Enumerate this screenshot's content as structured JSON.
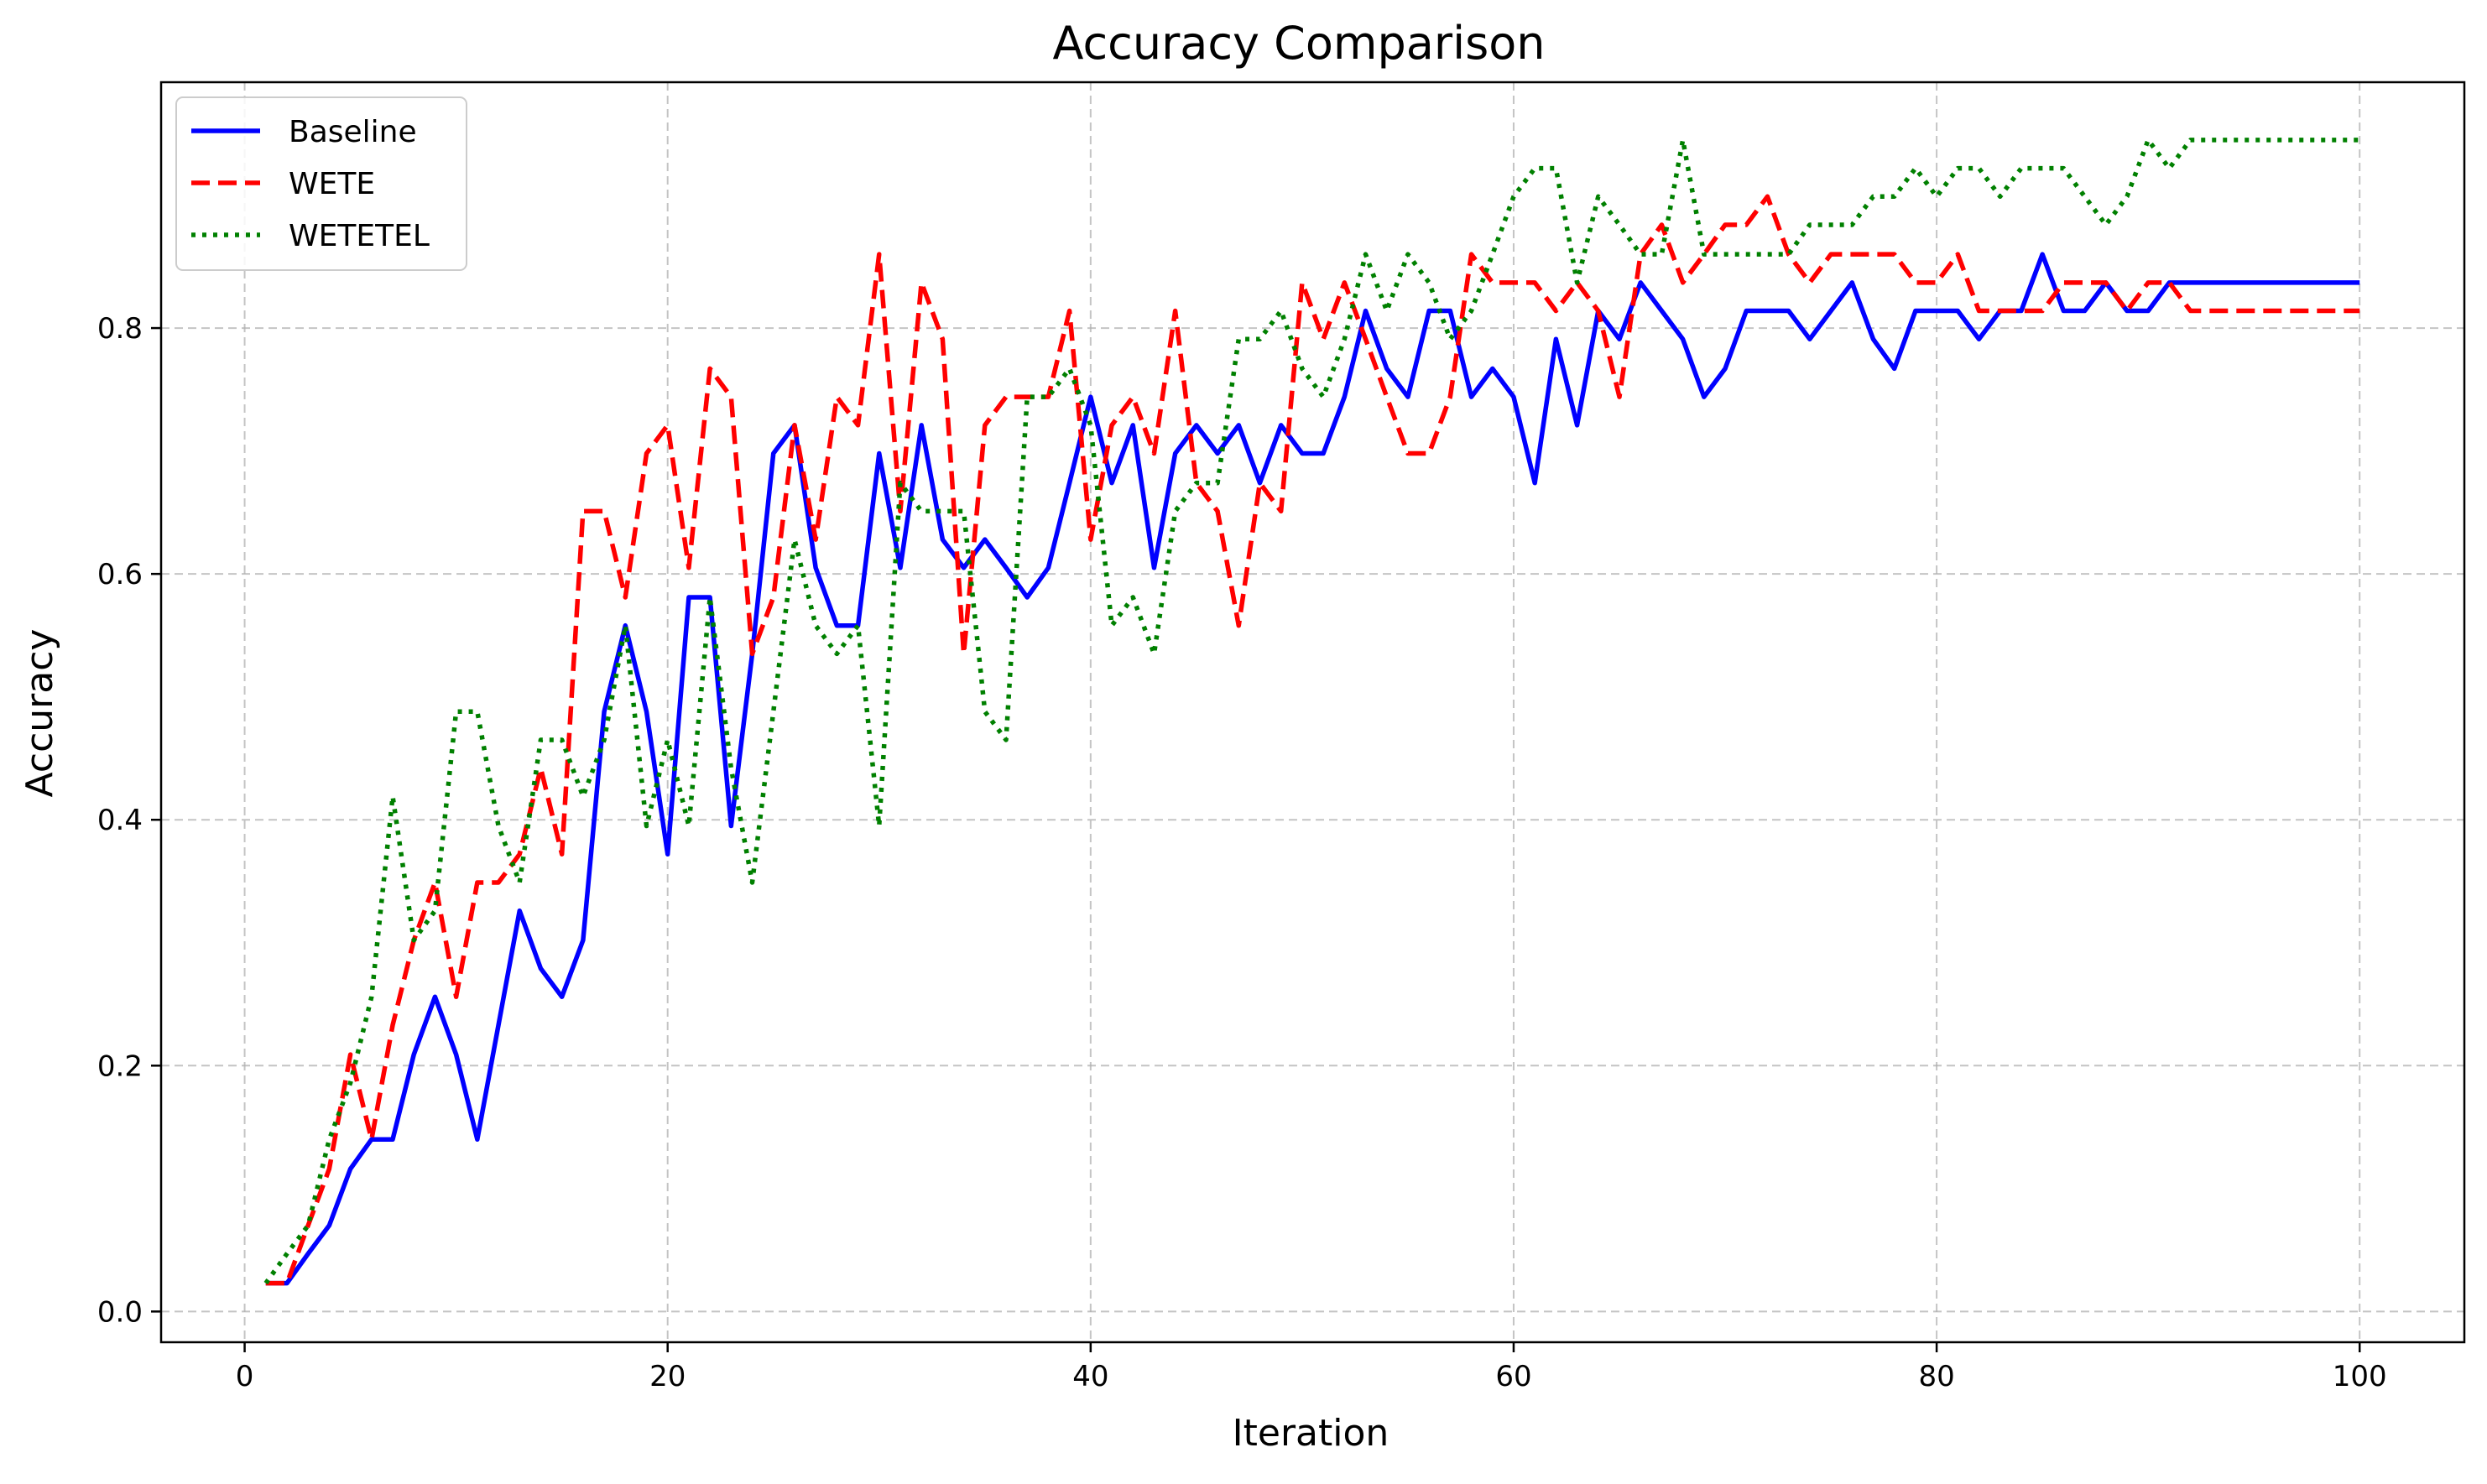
{
  "chart_data": {
    "type": "line",
    "title": "Accuracy Comparison",
    "xlabel": "Iteration",
    "ylabel": "Accuracy",
    "xlim": [
      -3.95,
      104.95
    ],
    "ylim": [
      -0.025,
      1.0
    ],
    "x_ticks": [
      0,
      20,
      40,
      60,
      80,
      100
    ],
    "y_ticks": [
      0.0,
      0.2,
      0.4,
      0.6,
      0.8
    ],
    "x_tick_labels": [
      "0",
      "20",
      "40",
      "60",
      "80",
      "100"
    ],
    "y_tick_labels": [
      "0.0",
      "0.2",
      "0.4",
      "0.6",
      "0.8"
    ],
    "grid": true,
    "legend_position": "top-left",
    "x_start": 1,
    "series": [
      {
        "name": "Baseline",
        "color": "#0000ff",
        "style": "solid",
        "values": [
          0.023,
          0.023,
          0.047,
          0.07,
          0.116,
          0.14,
          0.14,
          0.209,
          0.256,
          0.209,
          0.14,
          0.233,
          0.326,
          0.279,
          0.256,
          0.302,
          0.488,
          0.558,
          0.488,
          0.372,
          0.581,
          0.581,
          0.395,
          0.535,
          0.698,
          0.721,
          0.605,
          0.558,
          0.558,
          0.698,
          0.605,
          0.721,
          0.628,
          0.605,
          0.628,
          0.605,
          0.581,
          0.605,
          0.674,
          0.744,
          0.674,
          0.721,
          0.605,
          0.698,
          0.721,
          0.698,
          0.721,
          0.674,
          0.721,
          0.698,
          0.698,
          0.744,
          0.814,
          0.767,
          0.744,
          0.814,
          0.814,
          0.744,
          0.767,
          0.744,
          0.674,
          0.791,
          0.721,
          0.814,
          0.791,
          0.837,
          0.814,
          0.791,
          0.744,
          0.767,
          0.814,
          0.814,
          0.814,
          0.791,
          0.814,
          0.837,
          0.791,
          0.767,
          0.814,
          0.814,
          0.814,
          0.791,
          0.814,
          0.814,
          0.86,
          0.814,
          0.814,
          0.837,
          0.814,
          0.814,
          0.837,
          0.837,
          0.837,
          0.837,
          0.837,
          0.837,
          0.837,
          0.837,
          0.837,
          0.837
        ]
      },
      {
        "name": "WETE",
        "color": "#ff0000",
        "style": "dashed",
        "values": [
          0.023,
          0.023,
          0.07,
          0.116,
          0.209,
          0.14,
          0.233,
          0.302,
          0.349,
          0.256,
          0.349,
          0.349,
          0.372,
          0.442,
          0.372,
          0.651,
          0.651,
          0.581,
          0.698,
          0.721,
          0.605,
          0.767,
          0.744,
          0.535,
          0.581,
          0.721,
          0.628,
          0.744,
          0.721,
          0.86,
          0.651,
          0.837,
          0.791,
          0.535,
          0.721,
          0.744,
          0.744,
          0.744,
          0.814,
          0.628,
          0.721,
          0.744,
          0.698,
          0.814,
          0.674,
          0.651,
          0.558,
          0.674,
          0.651,
          0.837,
          0.791,
          0.837,
          0.791,
          0.744,
          0.698,
          0.698,
          0.744,
          0.86,
          0.837,
          0.837,
          0.837,
          0.814,
          0.837,
          0.814,
          0.744,
          0.86,
          0.884,
          0.837,
          0.86,
          0.884,
          0.884,
          0.907,
          0.86,
          0.837,
          0.86,
          0.86,
          0.86,
          0.86,
          0.837,
          0.837,
          0.86,
          0.814,
          0.814,
          0.814,
          0.814,
          0.837,
          0.837,
          0.837,
          0.814,
          0.837,
          0.837,
          0.814,
          0.814,
          0.814,
          0.814,
          0.814,
          0.814,
          0.814,
          0.814,
          0.814
        ]
      },
      {
        "name": "WETETEL",
        "color": "#008000",
        "style": "dotted",
        "values": [
          0.023,
          0.047,
          0.07,
          0.14,
          0.186,
          0.256,
          0.419,
          0.302,
          0.326,
          0.488,
          0.488,
          0.395,
          0.349,
          0.465,
          0.465,
          0.419,
          0.465,
          0.558,
          0.395,
          0.465,
          0.395,
          0.581,
          0.442,
          0.349,
          0.488,
          0.628,
          0.558,
          0.535,
          0.558,
          0.395,
          0.674,
          0.651,
          0.651,
          0.651,
          0.488,
          0.465,
          0.744,
          0.744,
          0.767,
          0.721,
          0.558,
          0.581,
          0.535,
          0.651,
          0.674,
          0.674,
          0.791,
          0.791,
          0.814,
          0.767,
          0.744,
          0.791,
          0.86,
          0.814,
          0.86,
          0.837,
          0.791,
          0.814,
          0.86,
          0.907,
          0.93,
          0.93,
          0.837,
          0.907,
          0.884,
          0.86,
          0.86,
          0.953,
          0.86,
          0.86,
          0.86,
          0.86,
          0.86,
          0.884,
          0.884,
          0.884,
          0.907,
          0.907,
          0.93,
          0.907,
          0.93,
          0.93,
          0.907,
          0.93,
          0.93,
          0.93,
          0.907,
          0.884,
          0.907,
          0.953,
          0.93,
          0.953,
          0.953,
          0.953,
          0.953,
          0.953,
          0.953,
          0.953,
          0.953,
          0.953
        ]
      }
    ]
  }
}
